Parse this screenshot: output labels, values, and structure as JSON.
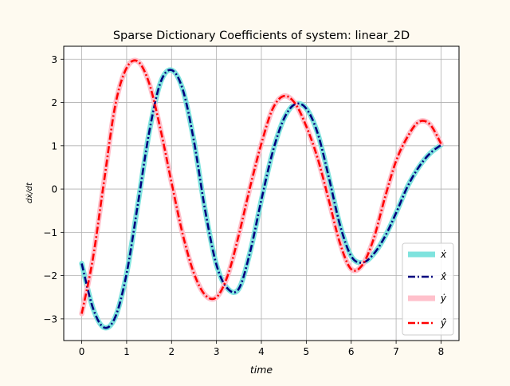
{
  "chart_data": {
    "type": "line",
    "title": "Sparse Dictionary Coefficients of system: linear_2D",
    "xlabel": "time",
    "ylabel": "dẋ/dt",
    "xlim": [
      -0.4,
      8.4
    ],
    "ylim": [
      -3.5,
      3.3
    ],
    "xticks": [
      0,
      1,
      2,
      3,
      4,
      5,
      6,
      7,
      8
    ],
    "xtick_labels": [
      "0",
      "1",
      "2",
      "3",
      "4",
      "5",
      "6",
      "7",
      "8"
    ],
    "yticks": [
      -3,
      -2,
      -1,
      0,
      1,
      2,
      3
    ],
    "ytick_labels": [
      "−3",
      "−2",
      "−1",
      "0",
      "1",
      "2",
      "3"
    ],
    "grid": true,
    "legend_position": "bottom-right",
    "x": [
      0.0,
      0.25,
      0.5,
      0.75,
      1.0,
      1.25,
      1.5,
      1.75,
      2.0,
      2.25,
      2.5,
      2.75,
      3.0,
      3.25,
      3.5,
      3.75,
      4.0,
      4.25,
      4.5,
      4.75,
      5.0,
      5.25,
      5.5,
      5.75,
      6.0,
      6.25,
      6.5,
      6.75,
      7.0,
      7.25,
      7.5,
      7.75,
      8.0
    ],
    "series": [
      {
        "name": "ẋ",
        "style": "solid-thick",
        "color": "#7fe3de",
        "values": [
          -1.72,
          -2.75,
          -3.2,
          -2.95,
          -1.95,
          -0.35,
          1.3,
          2.45,
          2.75,
          2.3,
          1.1,
          -0.5,
          -1.75,
          -2.3,
          -2.3,
          -1.45,
          -0.25,
          0.85,
          1.62,
          1.96,
          1.86,
          1.3,
          0.28,
          -0.83,
          -1.55,
          -1.7,
          -1.5,
          -1.1,
          -0.55,
          0.05,
          0.5,
          0.82,
          1.02
        ]
      },
      {
        "name": "x̂̇",
        "style": "dashdot",
        "color": "#00007f",
        "values": [
          -1.72,
          -2.75,
          -3.2,
          -2.95,
          -1.95,
          -0.35,
          1.3,
          2.45,
          2.75,
          2.3,
          1.1,
          -0.5,
          -1.75,
          -2.3,
          -2.3,
          -1.45,
          -0.25,
          0.85,
          1.62,
          1.96,
          1.86,
          1.3,
          0.28,
          -0.83,
          -1.55,
          -1.7,
          -1.5,
          -1.1,
          -0.55,
          0.05,
          0.5,
          0.82,
          1.02
        ]
      },
      {
        "name": "ẏ",
        "style": "solid-thick",
        "color": "#ffc0cb",
        "values": [
          -2.88,
          -1.6,
          0.2,
          1.95,
          2.8,
          2.95,
          2.45,
          1.4,
          0.15,
          -1.05,
          -1.95,
          -2.45,
          -2.5,
          -2.0,
          -1.05,
          0.05,
          1.05,
          1.85,
          2.15,
          1.98,
          1.45,
          0.72,
          -0.25,
          -1.25,
          -1.85,
          -1.75,
          -1.15,
          -0.2,
          0.65,
          1.2,
          1.55,
          1.5,
          1.05
        ]
      },
      {
        "name": "ŷ̇",
        "style": "dashdot",
        "color": "#ff0000",
        "values": [
          -2.88,
          -1.6,
          0.2,
          1.95,
          2.8,
          2.95,
          2.45,
          1.4,
          0.15,
          -1.05,
          -1.95,
          -2.45,
          -2.5,
          -2.0,
          -1.05,
          0.05,
          1.05,
          1.85,
          2.15,
          1.98,
          1.45,
          0.72,
          -0.25,
          -1.25,
          -1.85,
          -1.75,
          -1.15,
          -0.2,
          0.65,
          1.2,
          1.55,
          1.5,
          1.05
        ]
      }
    ]
  }
}
